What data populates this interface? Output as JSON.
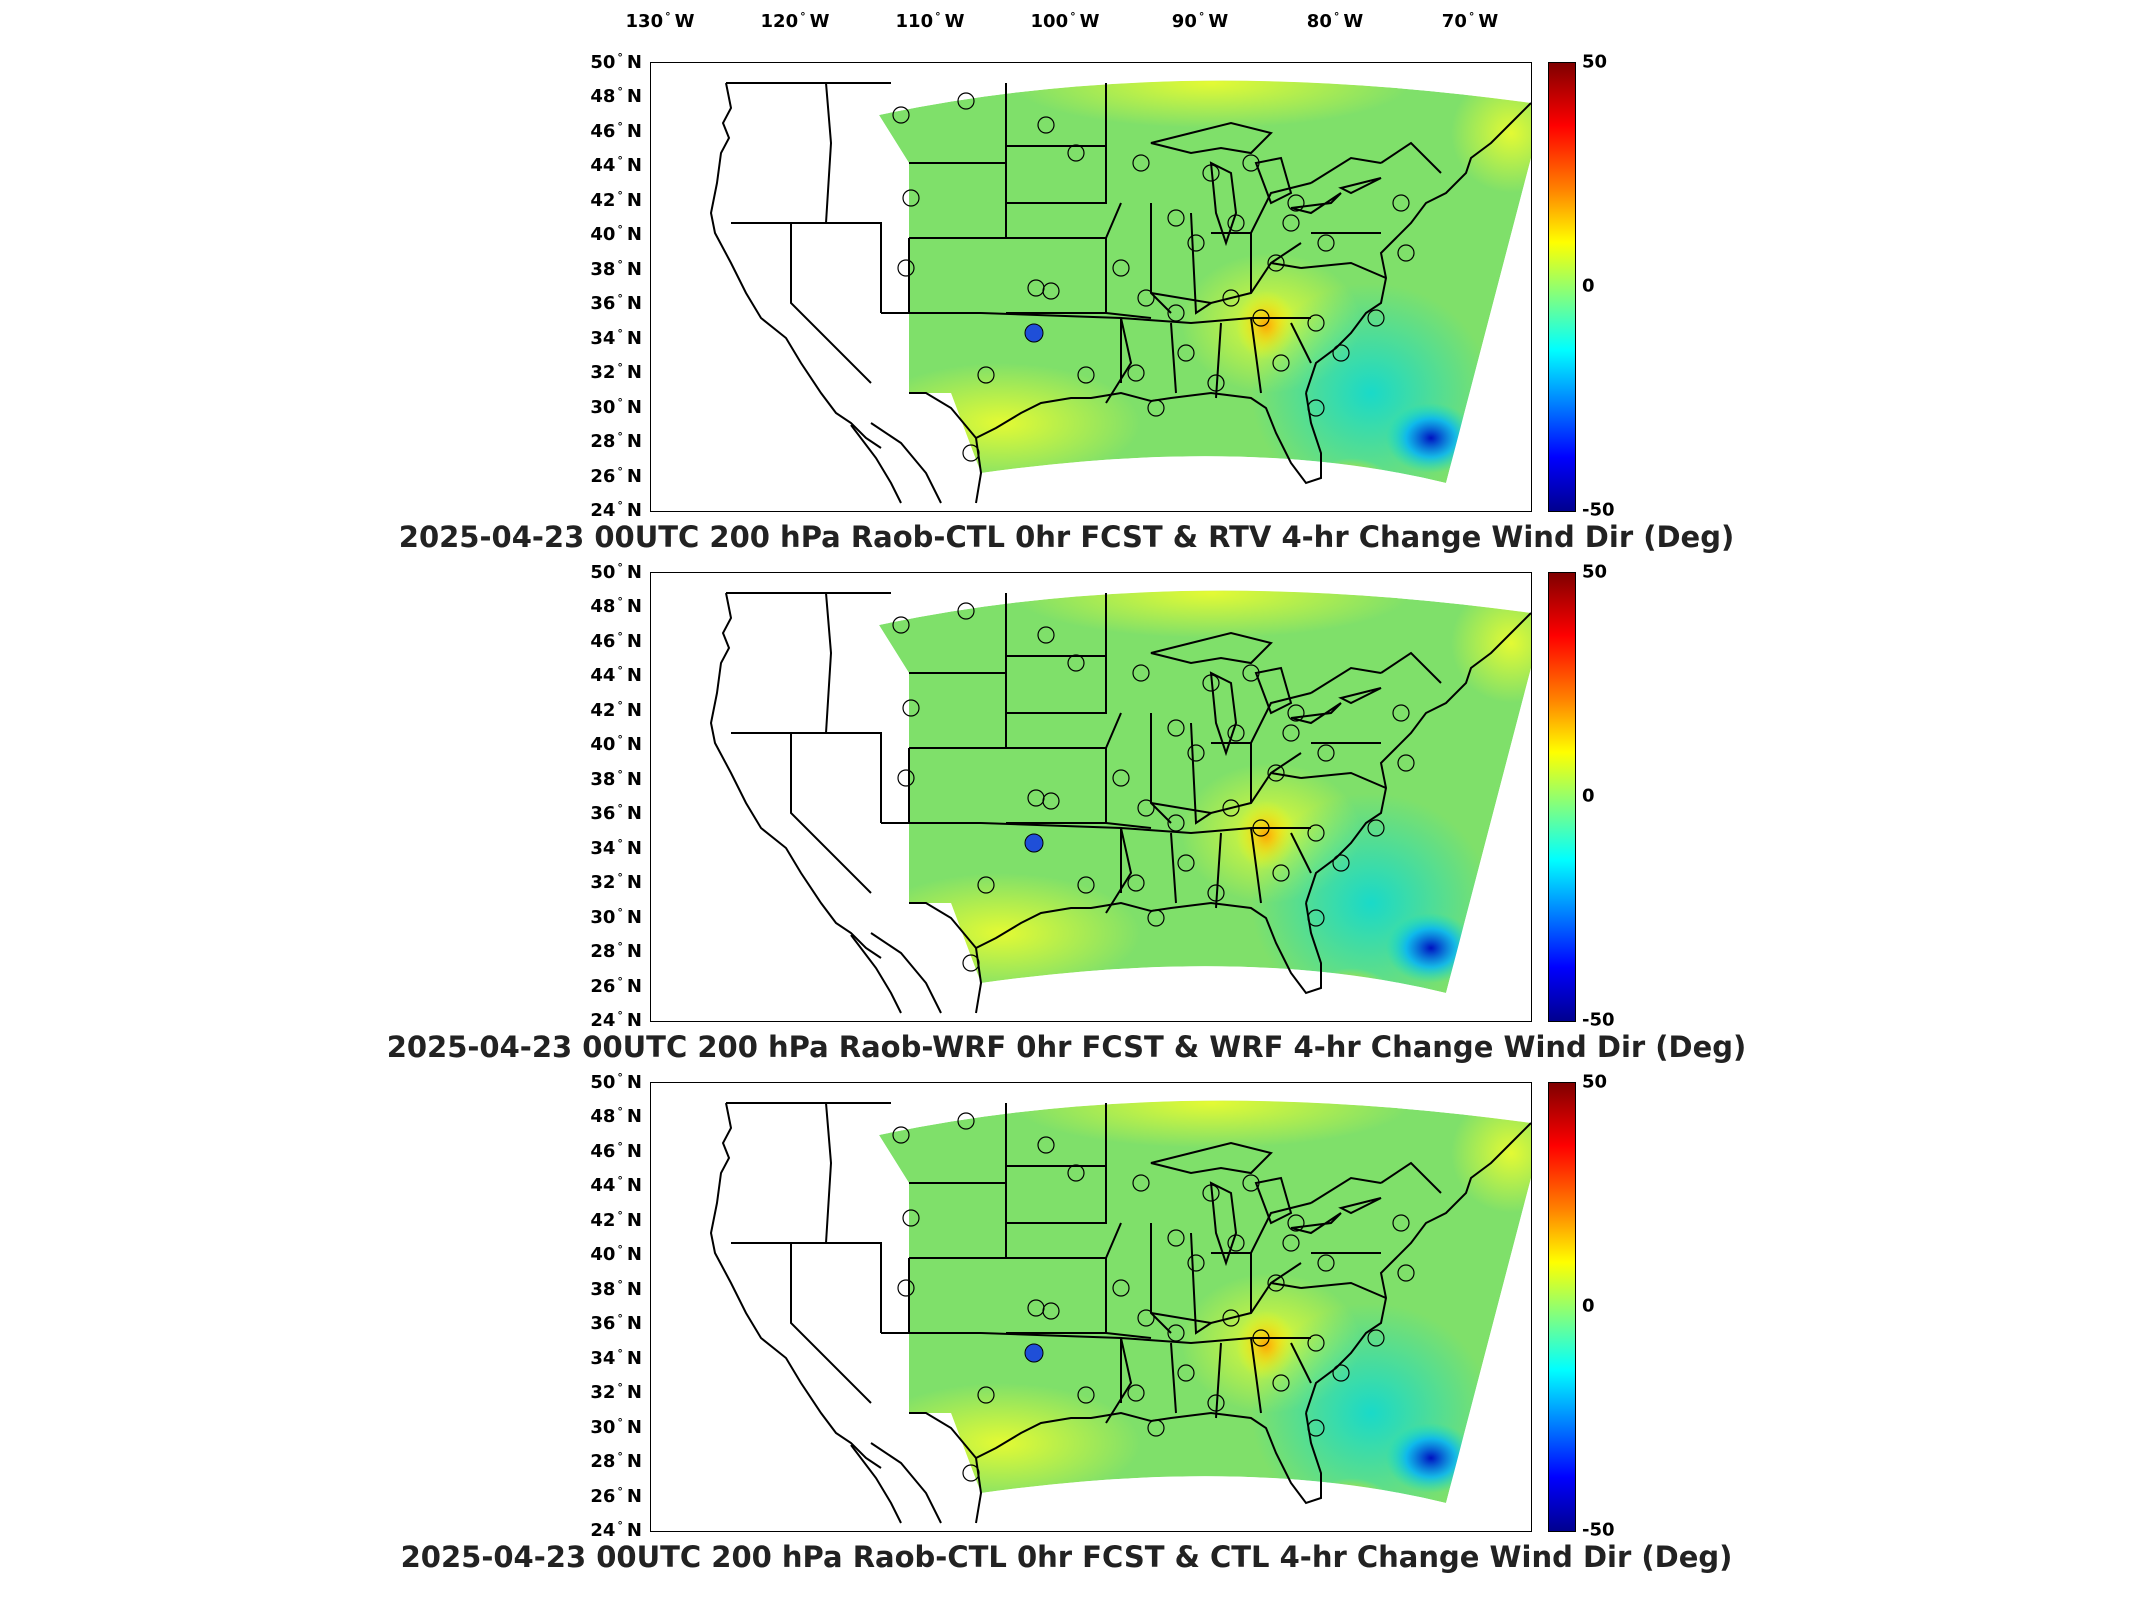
{
  "lon_labels": [
    {
      "num": "130",
      "dir": "W"
    },
    {
      "num": "120",
      "dir": "W"
    },
    {
      "num": "110",
      "dir": "W"
    },
    {
      "num": "100",
      "dir": "W"
    },
    {
      "num": "90",
      "dir": "W"
    },
    {
      "num": "80",
      "dir": "W"
    },
    {
      "num": "70",
      "dir": "W"
    }
  ],
  "lat_labels": [
    {
      "num": "50",
      "dir": "N"
    },
    {
      "num": "48",
      "dir": "N"
    },
    {
      "num": "46",
      "dir": "N"
    },
    {
      "num": "44",
      "dir": "N"
    },
    {
      "num": "42",
      "dir": "N"
    },
    {
      "num": "40",
      "dir": "N"
    },
    {
      "num": "38",
      "dir": "N"
    },
    {
      "num": "36",
      "dir": "N"
    },
    {
      "num": "34",
      "dir": "N"
    },
    {
      "num": "32",
      "dir": "N"
    },
    {
      "num": "30",
      "dir": "N"
    },
    {
      "num": "28",
      "dir": "N"
    },
    {
      "num": "26",
      "dir": "N"
    },
    {
      "num": "24",
      "dir": "N"
    }
  ],
  "colorbar": {
    "max": "50",
    "mid": "0",
    "min": "-50"
  },
  "colors": {
    "field_base": "#7fe06a",
    "border": "#000000",
    "station_fill": "#1f4fd8"
  },
  "panels": [
    {
      "title": "2025-04-23 00UTC 200 hPa Raob-CTL 0hr FCST & RTV 4-hr Change Wind Dir (Deg)"
    },
    {
      "title": "2025-04-23 00UTC 200 hPa Raob-WRF 0hr FCST & WRF 4-hr Change Wind Dir (Deg)"
    },
    {
      "title": "2025-04-23 00UTC 200 hPa Raob-CTL 0hr FCST & CTL 4-hr Change Wind Dir (Deg)"
    }
  ]
}
